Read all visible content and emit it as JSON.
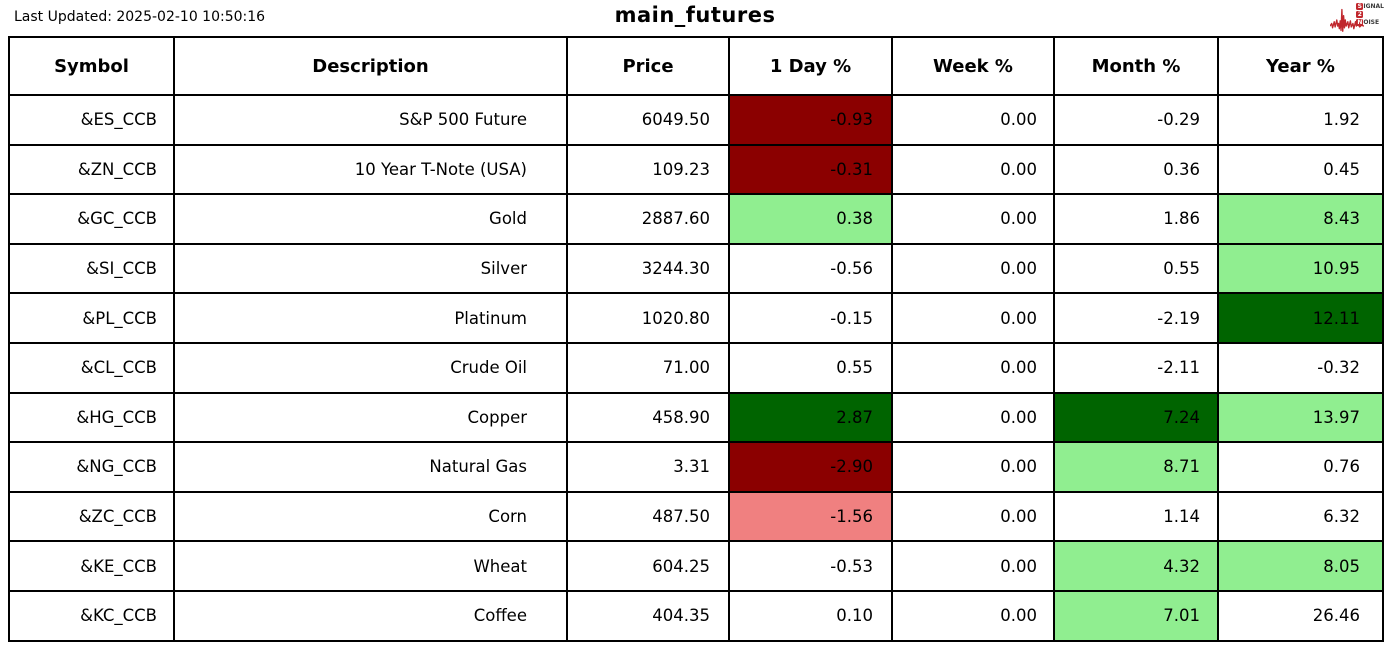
{
  "header": {
    "last_updated": "Last Updated: 2025-02-10 10:50:16",
    "title": "main_futures"
  },
  "logo": {
    "name": "signal-2-noise",
    "badge1": "S",
    "rest1": "IGNAL",
    "badge2": "2",
    "badge3": "N",
    "rest3": "OISE",
    "red": "#c0272d"
  },
  "colors": {
    "strong_negative": "#8b0000",
    "mild_negative": "#f08080",
    "strong_positive": "#006400",
    "mild_positive": "#90ee90",
    "neutral": "#ffffff"
  },
  "chart_data": {
    "type": "table",
    "title": "main_futures",
    "columns": [
      "Symbol",
      "Description",
      "Price",
      "1 Day %",
      "Week %",
      "Month %",
      "Year %"
    ],
    "column_keys": [
      "symbol",
      "description",
      "price",
      "day_pct",
      "week_pct",
      "month_pct",
      "year_pct"
    ],
    "rows": [
      {
        "symbol": "&ES_CCB",
        "description": "S&P 500 Future",
        "price": 6049.5,
        "day_pct": -0.93,
        "week_pct": 0.0,
        "month_pct": -0.29,
        "year_pct": 1.92,
        "highlights": {
          "day_pct": "strong_negative"
        }
      },
      {
        "symbol": "&ZN_CCB",
        "description": "10 Year T-Note (USA)",
        "price": 109.23,
        "day_pct": -0.31,
        "week_pct": 0.0,
        "month_pct": 0.36,
        "year_pct": 0.45,
        "highlights": {
          "day_pct": "strong_negative"
        }
      },
      {
        "symbol": "&GC_CCB",
        "description": "Gold",
        "price": 2887.6,
        "day_pct": 0.38,
        "week_pct": 0.0,
        "month_pct": 1.86,
        "year_pct": 8.43,
        "highlights": {
          "day_pct": "mild_positive",
          "year_pct": "mild_positive"
        }
      },
      {
        "symbol": "&SI_CCB",
        "description": "Silver",
        "price": 3244.3,
        "day_pct": -0.56,
        "week_pct": 0.0,
        "month_pct": 0.55,
        "year_pct": 10.95,
        "highlights": {
          "year_pct": "mild_positive"
        }
      },
      {
        "symbol": "&PL_CCB",
        "description": "Platinum",
        "price": 1020.8,
        "day_pct": -0.15,
        "week_pct": 0.0,
        "month_pct": -2.19,
        "year_pct": 12.11,
        "highlights": {
          "year_pct": "strong_positive"
        }
      },
      {
        "symbol": "&CL_CCB",
        "description": "Crude Oil",
        "price": 71.0,
        "day_pct": 0.55,
        "week_pct": 0.0,
        "month_pct": -2.11,
        "year_pct": -0.32,
        "highlights": {}
      },
      {
        "symbol": "&HG_CCB",
        "description": "Copper",
        "price": 458.9,
        "day_pct": 2.87,
        "week_pct": 0.0,
        "month_pct": 7.24,
        "year_pct": 13.97,
        "highlights": {
          "day_pct": "strong_positive",
          "month_pct": "strong_positive",
          "year_pct": "mild_positive"
        }
      },
      {
        "symbol": "&NG_CCB",
        "description": "Natural Gas",
        "price": 3.31,
        "day_pct": -2.9,
        "week_pct": 0.0,
        "month_pct": 8.71,
        "year_pct": 0.76,
        "highlights": {
          "day_pct": "strong_negative",
          "month_pct": "mild_positive"
        }
      },
      {
        "symbol": "&ZC_CCB",
        "description": "Corn",
        "price": 487.5,
        "day_pct": -1.56,
        "week_pct": 0.0,
        "month_pct": 1.14,
        "year_pct": 6.32,
        "highlights": {
          "day_pct": "mild_negative"
        }
      },
      {
        "symbol": "&KE_CCB",
        "description": "Wheat",
        "price": 604.25,
        "day_pct": -0.53,
        "week_pct": 0.0,
        "month_pct": 4.32,
        "year_pct": 8.05,
        "highlights": {
          "month_pct": "mild_positive",
          "year_pct": "mild_positive"
        }
      },
      {
        "symbol": "&KC_CCB",
        "description": "Coffee",
        "price": 404.35,
        "day_pct": 0.1,
        "week_pct": 0.0,
        "month_pct": 7.01,
        "year_pct": 26.46,
        "highlights": {
          "month_pct": "mild_positive"
        }
      }
    ]
  }
}
